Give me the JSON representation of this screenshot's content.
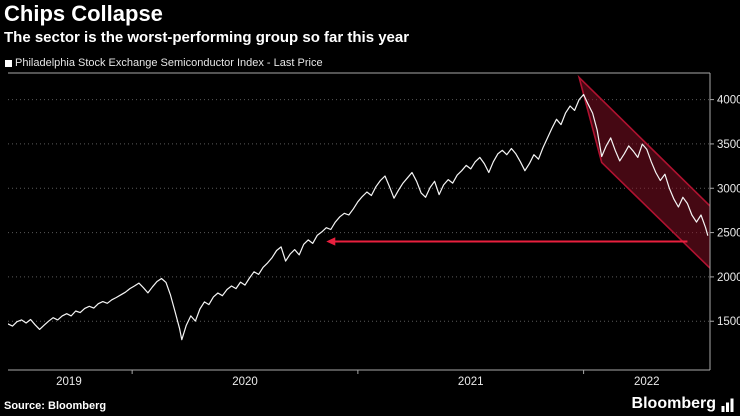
{
  "header": {
    "title": "Chips Collapse",
    "subtitle": "The sector is the worst-performing group so far this year"
  },
  "legend": {
    "marker_color": "#ffffff",
    "label": "Philadelphia Stock Exchange Semiconductor Index - Last Price"
  },
  "footer": {
    "source": "Source: Bloomberg",
    "brand": "Bloomberg"
  },
  "colors": {
    "background": "#000000",
    "line": "#f5f5f5",
    "grid": "#5a5a5a",
    "axis": "#a8a8a8",
    "text": "#eaeaea",
    "accent_red": "#e8203e"
  },
  "chart_data": {
    "type": "line",
    "title": "Chips Collapse",
    "xlabel": "",
    "ylabel": "",
    "x_range": [
      2019.45,
      2022.56
    ],
    "y_range": [
      950,
      4300
    ],
    "y_ticks": [
      1500,
      2000,
      2500,
      3000,
      3500,
      4000
    ],
    "x_year_ticks": [
      2020,
      2021,
      2022
    ],
    "x_labels": [
      {
        "text": "2019",
        "t": 2019.72
      },
      {
        "text": "2020",
        "t": 2020.5
      },
      {
        "text": "2021",
        "t": 2021.5
      },
      {
        "text": "2022",
        "t": 2022.28
      }
    ],
    "grid": "horizontal-dotted",
    "legend_position": "top-left",
    "series": [
      {
        "name": "Philadelphia Stock Exchange Semiconductor Index - Last Price",
        "color": "#f5f5f5",
        "points": [
          [
            2019.45,
            1470
          ],
          [
            2019.47,
            1445
          ],
          [
            2019.49,
            1495
          ],
          [
            2019.51,
            1515
          ],
          [
            2019.53,
            1480
          ],
          [
            2019.55,
            1520
          ],
          [
            2019.57,
            1460
          ],
          [
            2019.59,
            1408
          ],
          [
            2019.61,
            1455
          ],
          [
            2019.63,
            1500
          ],
          [
            2019.65,
            1540
          ],
          [
            2019.67,
            1515
          ],
          [
            2019.69,
            1560
          ],
          [
            2019.71,
            1585
          ],
          [
            2019.73,
            1560
          ],
          [
            2019.75,
            1615
          ],
          [
            2019.77,
            1598
          ],
          [
            2019.79,
            1645
          ],
          [
            2019.81,
            1668
          ],
          [
            2019.83,
            1648
          ],
          [
            2019.85,
            1698
          ],
          [
            2019.87,
            1722
          ],
          [
            2019.89,
            1702
          ],
          [
            2019.91,
            1742
          ],
          [
            2019.93,
            1768
          ],
          [
            2019.95,
            1798
          ],
          [
            2019.97,
            1828
          ],
          [
            2019.99,
            1868
          ],
          [
            2020.01,
            1898
          ],
          [
            2020.03,
            1930
          ],
          [
            2020.05,
            1878
          ],
          [
            2020.07,
            1820
          ],
          [
            2020.09,
            1888
          ],
          [
            2020.11,
            1948
          ],
          [
            2020.13,
            1982
          ],
          [
            2020.15,
            1938
          ],
          [
            2020.17,
            1795
          ],
          [
            2020.19,
            1610
          ],
          [
            2020.21,
            1420
          ],
          [
            2020.22,
            1292
          ],
          [
            2020.24,
            1455
          ],
          [
            2020.26,
            1560
          ],
          [
            2020.28,
            1502
          ],
          [
            2020.3,
            1638
          ],
          [
            2020.32,
            1718
          ],
          [
            2020.34,
            1688
          ],
          [
            2020.36,
            1775
          ],
          [
            2020.38,
            1818
          ],
          [
            2020.4,
            1788
          ],
          [
            2020.42,
            1858
          ],
          [
            2020.44,
            1898
          ],
          [
            2020.46,
            1868
          ],
          [
            2020.48,
            1942
          ],
          [
            2020.5,
            1908
          ],
          [
            2020.52,
            1988
          ],
          [
            2020.54,
            2058
          ],
          [
            2020.56,
            2028
          ],
          [
            2020.58,
            2108
          ],
          [
            2020.6,
            2158
          ],
          [
            2020.62,
            2218
          ],
          [
            2020.64,
            2298
          ],
          [
            2020.66,
            2338
          ],
          [
            2020.68,
            2178
          ],
          [
            2020.7,
            2258
          ],
          [
            2020.72,
            2308
          ],
          [
            2020.74,
            2248
          ],
          [
            2020.76,
            2368
          ],
          [
            2020.78,
            2418
          ],
          [
            2020.8,
            2378
          ],
          [
            2020.82,
            2468
          ],
          [
            2020.84,
            2508
          ],
          [
            2020.86,
            2555
          ],
          [
            2020.88,
            2535
          ],
          [
            2020.9,
            2618
          ],
          [
            2020.92,
            2678
          ],
          [
            2020.94,
            2718
          ],
          [
            2020.96,
            2698
          ],
          [
            2020.98,
            2768
          ],
          [
            2021,
            2848
          ],
          [
            2021.02,
            2908
          ],
          [
            2021.04,
            2958
          ],
          [
            2021.06,
            2918
          ],
          [
            2021.08,
            3018
          ],
          [
            2021.1,
            3088
          ],
          [
            2021.12,
            3138
          ],
          [
            2021.14,
            3018
          ],
          [
            2021.16,
            2888
          ],
          [
            2021.18,
            2978
          ],
          [
            2021.2,
            3058
          ],
          [
            2021.22,
            3118
          ],
          [
            2021.24,
            3178
          ],
          [
            2021.26,
            3078
          ],
          [
            2021.28,
            2948
          ],
          [
            2021.3,
            2898
          ],
          [
            2021.32,
            3008
          ],
          [
            2021.34,
            3078
          ],
          [
            2021.36,
            2928
          ],
          [
            2021.38,
            3038
          ],
          [
            2021.4,
            3098
          ],
          [
            2021.42,
            3058
          ],
          [
            2021.44,
            3148
          ],
          [
            2021.46,
            3198
          ],
          [
            2021.48,
            3258
          ],
          [
            2021.5,
            3218
          ],
          [
            2021.52,
            3298
          ],
          [
            2021.54,
            3348
          ],
          [
            2021.56,
            3278
          ],
          [
            2021.58,
            3178
          ],
          [
            2021.6,
            3298
          ],
          [
            2021.62,
            3388
          ],
          [
            2021.64,
            3428
          ],
          [
            2021.66,
            3378
          ],
          [
            2021.68,
            3448
          ],
          [
            2021.7,
            3388
          ],
          [
            2021.72,
            3298
          ],
          [
            2021.74,
            3198
          ],
          [
            2021.76,
            3278
          ],
          [
            2021.78,
            3378
          ],
          [
            2021.8,
            3328
          ],
          [
            2021.82,
            3458
          ],
          [
            2021.84,
            3568
          ],
          [
            2021.86,
            3678
          ],
          [
            2021.88,
            3778
          ],
          [
            2021.9,
            3718
          ],
          [
            2021.92,
            3848
          ],
          [
            2021.94,
            3928
          ],
          [
            2021.96,
            3878
          ],
          [
            2021.98,
            4000
          ],
          [
            2022,
            4058
          ],
          [
            2022.02,
            3948
          ],
          [
            2022.04,
            3848
          ],
          [
            2022.06,
            3658
          ],
          [
            2022.08,
            3358
          ],
          [
            2022.1,
            3478
          ],
          [
            2022.12,
            3568
          ],
          [
            2022.14,
            3428
          ],
          [
            2022.16,
            3308
          ],
          [
            2022.18,
            3388
          ],
          [
            2022.2,
            3478
          ],
          [
            2022.22,
            3418
          ],
          [
            2022.24,
            3348
          ],
          [
            2022.26,
            3498
          ],
          [
            2022.28,
            3438
          ],
          [
            2022.3,
            3298
          ],
          [
            2022.32,
            3178
          ],
          [
            2022.34,
            3088
          ],
          [
            2022.36,
            3158
          ],
          [
            2022.38,
            2998
          ],
          [
            2022.4,
            2878
          ],
          [
            2022.42,
            2788
          ],
          [
            2022.44,
            2898
          ],
          [
            2022.46,
            2828
          ],
          [
            2022.48,
            2698
          ],
          [
            2022.5,
            2618
          ],
          [
            2022.52,
            2698
          ],
          [
            2022.54,
            2558
          ],
          [
            2022.55,
            2470
          ]
        ]
      }
    ],
    "annotations": {
      "channel": {
        "description": "downtrend channel highlighting 2022 decline",
        "points": [
          [
            2021.98,
            4250
          ],
          [
            2022.62,
            2650
          ],
          [
            2022.62,
            1950
          ],
          [
            2022.08,
            3290
          ]
        ],
        "fill": "#8a1026",
        "fill_opacity": 0.5,
        "stroke": "#b01230"
      },
      "arrow": {
        "description": "horizontal arrow from current price back to late-2020 level",
        "y_value": 2400,
        "t_head": 2020.86,
        "t_tail": 2022.46,
        "direction": "left",
        "color": "#e8203e"
      }
    }
  }
}
